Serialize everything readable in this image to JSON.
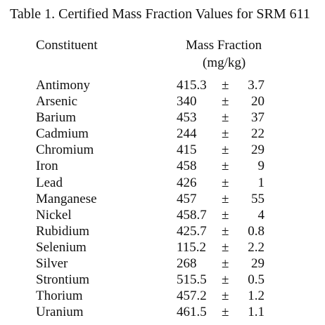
{
  "document": {
    "title": "Table 1.  Certified Mass Fraction Values for SRM 611",
    "headers": {
      "constituent": "Constituent",
      "mass_fraction": "Mass Fraction",
      "unit": "(mg/kg)"
    },
    "plus_minus": "±",
    "rows": [
      {
        "name": "Antimony",
        "value": "415.3",
        "uncertainty": "3.7"
      },
      {
        "name": "Arsenic",
        "value": "340",
        "uncertainty": "20"
      },
      {
        "name": "Barium",
        "value": "453",
        "uncertainty": "37"
      },
      {
        "name": "Cadmium",
        "value": "244",
        "uncertainty": "22"
      },
      {
        "name": "Chromium",
        "value": "415",
        "uncertainty": "29"
      },
      {
        "name": "Iron",
        "value": "458",
        "uncertainty": "9"
      },
      {
        "name": "Lead",
        "value": "426",
        "uncertainty": "1"
      },
      {
        "name": "Manganese",
        "value": "457",
        "uncertainty": "55"
      },
      {
        "name": "Nickel",
        "value": "458.7",
        "uncertainty": "4"
      },
      {
        "name": "Rubidium",
        "value": "425.7",
        "uncertainty": "0.8"
      },
      {
        "name": "Selenium",
        "value": "115.2",
        "uncertainty": "2.2"
      },
      {
        "name": "Silver",
        "value": "268",
        "uncertainty": "29"
      },
      {
        "name": "Strontium",
        "value": "515.5",
        "uncertainty": "0.5"
      },
      {
        "name": "Thorium",
        "value": "457.2",
        "uncertainty": "1.2"
      },
      {
        "name": "Uranium",
        "value": "461.5",
        "uncertainty": "1.1"
      }
    ]
  }
}
